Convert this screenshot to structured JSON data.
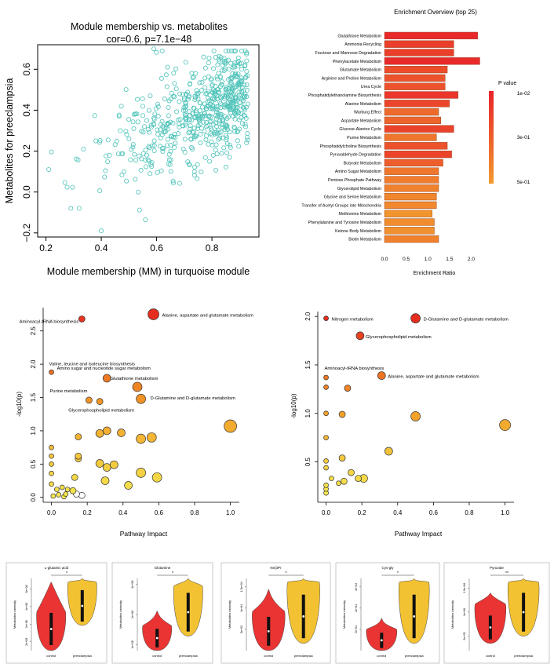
{
  "colors": {
    "scatter_point": "#4fc3b9",
    "bar_high": "#e8232a",
    "bar_low": "#f2992e",
    "bubble_high": "#e52d20",
    "bubble_mid": "#f29a26",
    "bubble_low": "#f4e74f",
    "violin_control": "#e93433",
    "violin_preeclampsia": "#f2c232"
  },
  "chart_data": [
    {
      "type": "scatter",
      "title": "Module membership vs. metabolites",
      "subtitle": "cor=0.6, p=7.1e−48",
      "xlabel": "Module membership (MM) in turquoise module",
      "ylabel": "Metabolites for preeclampsia",
      "xlim": [
        0.17,
        0.97
      ],
      "ylim": [
        -0.22,
        0.72
      ],
      "xticks": [
        "0.2",
        "0.4",
        "0.6",
        "0.8"
      ],
      "xtick_values": [
        0.2,
        0.4,
        0.6,
        0.8
      ],
      "yticks": [
        "−0.2",
        "0.0",
        "0.2",
        "0.4",
        "0.6"
      ],
      "ytick_values": [
        -0.2,
        0.0,
        0.2,
        0.4,
        0.6
      ],
      "point_count": 600,
      "correlation": 0.6,
      "sample_points": [
        {
          "x": 0.21,
          "y": 0.11
        },
        {
          "x": 0.29,
          "y": -0.08
        },
        {
          "x": 0.32,
          "y": -0.08
        },
        {
          "x": 0.4,
          "y": -0.19
        },
        {
          "x": 0.59,
          "y": 0.7
        },
        {
          "x": 0.62,
          "y": 0.69
        },
        {
          "x": 0.77,
          "y": 0.66
        },
        {
          "x": 0.88,
          "y": 0.62
        },
        {
          "x": 0.93,
          "y": 0.43
        },
        {
          "x": 0.38,
          "y": 0.25
        },
        {
          "x": 0.5,
          "y": 0.26
        },
        {
          "x": 0.7,
          "y": 0.45
        }
      ],
      "grid": false
    },
    {
      "type": "bar",
      "title": "Enrichment Overview (top 25)",
      "xlabel": "Enrichment Ratio",
      "xlim": [
        0,
        2.3
      ],
      "xticks": [
        "0.0",
        "0.5",
        "1.0",
        "1.5",
        "2.0"
      ],
      "xtick_values": [
        0,
        0.5,
        1.0,
        1.5,
        2.0
      ],
      "orientation": "horizontal",
      "legend_title": "P value",
      "legend_ticks": [
        "1e-02",
        "3e-01",
        "5e-01"
      ],
      "legend_placement": "right",
      "categories": [
        "Glutathione Metabolism",
        "Ammonia Recycling",
        "Fructose and Mannose Degradation",
        "Phenylacetate Metabolism",
        "Glutamate Metabolism",
        "Arginine and Proline Metabolism",
        "Urea Cycle",
        "Phosphatidylethanolamine Biosynthesis",
        "Alanine Metabolism",
        "Warburg Effect",
        "Aspartate Metabolism",
        "Glucose-Alanine Cycle",
        "Purine Metabolism",
        "Phosphatidylcholine Biosynthesis",
        "Pyruvaldehyde Degradation",
        "Butyrate Metabolism",
        "Amino Sugar Metabolism",
        "Pentose Phosphate Pathway",
        "Glycerolipid Metabolism",
        "Glycine and Serine Metabolism",
        "Transfer of Acetyl Groups into Mitochondria",
        "Methionine Metabolism",
        "Phenylalanine and Tyrosine Metabolism",
        "Ketone Body Metabolism",
        "Biotin Metabolism"
      ],
      "values": [
        2.15,
        1.6,
        1.6,
        2.2,
        1.45,
        1.4,
        1.4,
        1.7,
        1.5,
        1.25,
        1.3,
        1.6,
        1.2,
        1.45,
        1.55,
        1.35,
        1.25,
        1.25,
        1.25,
        1.2,
        1.2,
        1.1,
        1.15,
        1.15,
        1.25
      ],
      "p_values": [
        0.02,
        0.12,
        0.12,
        0.03,
        0.18,
        0.2,
        0.2,
        0.08,
        0.15,
        0.3,
        0.28,
        0.13,
        0.35,
        0.2,
        0.14,
        0.25,
        0.35,
        0.38,
        0.4,
        0.42,
        0.43,
        0.48,
        0.45,
        0.46,
        0.4
      ]
    },
    {
      "type": "scatter",
      "xlabel": "Pathway Impact",
      "ylabel": "-log10(p)",
      "xlim": [
        -0.02,
        1.05
      ],
      "ylim": [
        -0.05,
        2.85
      ],
      "xticks": [
        "0.0",
        "0.2",
        "0.4",
        "0.6",
        "0.8",
        "1.0"
      ],
      "xtick_values": [
        0,
        0.2,
        0.4,
        0.6,
        0.8,
        1.0
      ],
      "yticks": [
        "0.0",
        "0.5",
        "1.0",
        "1.5",
        "2.0",
        "2.5"
      ],
      "ytick_values": [
        0,
        0.5,
        1.0,
        1.5,
        2.0,
        2.5
      ],
      "points": [
        {
          "x": 0.57,
          "y": 2.75,
          "r": 7,
          "label": "Alanine, aspartate and glutamate metabolism"
        },
        {
          "x": 0.17,
          "y": 2.68,
          "r": 4,
          "label": "Aminoacyl-tRNA biosynthesis"
        },
        {
          "x": 0.0,
          "y": 1.88,
          "r": 3,
          "label": "Valine, leucine and isoleucine biosynthesis"
        },
        {
          "x": 0.31,
          "y": 1.79,
          "r": 5,
          "label": "Amino sugar and nucleotide sugar metabolism"
        },
        {
          "x": 0.48,
          "y": 1.66,
          "r": 6,
          "label": "Glutathione metabolism"
        },
        {
          "x": 0.21,
          "y": 1.46,
          "r": 4,
          "label": "Purine metabolism"
        },
        {
          "x": 0.5,
          "y": 1.48,
          "r": 6,
          "label": "D-Glutamine and D-glutamate metabolism"
        },
        {
          "x": 0.27,
          "y": 1.44,
          "r": 4,
          "label": "Glycerophospholipid metabolism"
        },
        {
          "x": 1.0,
          "y": 1.07,
          "r": 8,
          "label": ""
        },
        {
          "x": 0.56,
          "y": 0.9,
          "r": 6,
          "label": ""
        },
        {
          "x": 0.5,
          "y": 0.88,
          "r": 6,
          "label": ""
        },
        {
          "x": 0.39,
          "y": 0.97,
          "r": 5,
          "label": ""
        },
        {
          "x": 0.31,
          "y": 1.0,
          "r": 5,
          "label": ""
        },
        {
          "x": 0.27,
          "y": 0.96,
          "r": 5,
          "label": ""
        },
        {
          "x": 0.15,
          "y": 0.91,
          "r": 4,
          "label": ""
        },
        {
          "x": 0.15,
          "y": 0.62,
          "r": 4,
          "label": ""
        },
        {
          "x": 0.15,
          "y": 0.58,
          "r": 4,
          "label": ""
        },
        {
          "x": 0.0,
          "y": 0.75,
          "r": 3,
          "label": ""
        },
        {
          "x": 0.0,
          "y": 0.62,
          "r": 3,
          "label": ""
        },
        {
          "x": 0.59,
          "y": 0.3,
          "r": 6,
          "label": ""
        },
        {
          "x": 0.5,
          "y": 0.37,
          "r": 6,
          "label": ""
        },
        {
          "x": 0.43,
          "y": 0.18,
          "r": 5,
          "label": ""
        },
        {
          "x": 0.35,
          "y": 0.49,
          "r": 5,
          "label": ""
        },
        {
          "x": 0.31,
          "y": 0.45,
          "r": 5,
          "label": ""
        },
        {
          "x": 0.27,
          "y": 0.51,
          "r": 5,
          "label": ""
        },
        {
          "x": 0.3,
          "y": 0.25,
          "r": 5,
          "label": ""
        },
        {
          "x": 0.13,
          "y": 0.3,
          "r": 4,
          "label": ""
        },
        {
          "x": 0.0,
          "y": 0.5,
          "r": 3,
          "label": ""
        },
        {
          "x": 0.0,
          "y": 0.36,
          "r": 3,
          "label": ""
        },
        {
          "x": 0.0,
          "y": 0.2,
          "r": 3,
          "label": ""
        },
        {
          "x": 0.03,
          "y": 0.12,
          "r": 3,
          "label": ""
        },
        {
          "x": 0.06,
          "y": 0.15,
          "r": 3,
          "label": ""
        },
        {
          "x": 0.09,
          "y": 0.12,
          "r": 3,
          "label": ""
        },
        {
          "x": 0.12,
          "y": 0.1,
          "r": 4,
          "label": ""
        },
        {
          "x": 0.17,
          "y": 0.03,
          "r": 4,
          "label": ""
        },
        {
          "x": 0.14,
          "y": 0.05,
          "r": 4,
          "label": ""
        },
        {
          "x": 0.08,
          "y": 0.05,
          "r": 3,
          "label": ""
        },
        {
          "x": 0.04,
          "y": 0.04,
          "r": 3,
          "label": ""
        },
        {
          "x": 0.01,
          "y": 0.02,
          "r": 3,
          "label": ""
        },
        {
          "x": 0.07,
          "y": 0.01,
          "r": 3,
          "label": ""
        }
      ]
    },
    {
      "type": "scatter",
      "xlabel": "Pathway Impact",
      "ylabel": "-log10(p)",
      "xlim": [
        -0.02,
        1.05
      ],
      "ylim": [
        0.1,
        2.05
      ],
      "xticks": [
        "0.0",
        "0.2",
        "0.4",
        "0.6",
        "0.8",
        "1.0"
      ],
      "xtick_values": [
        0,
        0.2,
        0.4,
        0.6,
        0.8,
        1.0
      ],
      "yticks": [
        "0.5",
        "1.0",
        "1.5",
        "2.0"
      ],
      "ytick_values": [
        0.5,
        1.0,
        1.5,
        2.0
      ],
      "points": [
        {
          "x": 0.0,
          "y": 1.98,
          "r": 3,
          "label": "Nitrogen metabolism"
        },
        {
          "x": 0.5,
          "y": 1.98,
          "r": 6,
          "label": "D-Glutamine and D-glutamate metabolism"
        },
        {
          "x": 0.19,
          "y": 1.8,
          "r": 5,
          "label": "Glycerophospholipid metabolism"
        },
        {
          "x": 0.0,
          "y": 1.37,
          "r": 3,
          "label": "Aminoacyl-tRNA biosynthesis"
        },
        {
          "x": 0.31,
          "y": 1.39,
          "r": 5,
          "label": "Alanine, aspartate and glutamate metabolism"
        },
        {
          "x": 0.0,
          "y": 1.27,
          "r": 3,
          "label": ""
        },
        {
          "x": 0.12,
          "y": 1.26,
          "r": 4,
          "label": ""
        },
        {
          "x": 0.0,
          "y": 1.0,
          "r": 3,
          "label": ""
        },
        {
          "x": 0.09,
          "y": 0.99,
          "r": 4,
          "label": ""
        },
        {
          "x": 0.5,
          "y": 0.97,
          "r": 6,
          "label": ""
        },
        {
          "x": 1.0,
          "y": 0.88,
          "r": 7,
          "label": ""
        },
        {
          "x": 0.0,
          "y": 0.75,
          "r": 3,
          "label": ""
        },
        {
          "x": 0.35,
          "y": 0.61,
          "r": 5,
          "label": ""
        },
        {
          "x": 0.09,
          "y": 0.54,
          "r": 4,
          "label": ""
        },
        {
          "x": 0.0,
          "y": 0.51,
          "r": 3,
          "label": ""
        },
        {
          "x": 0.0,
          "y": 0.44,
          "r": 3,
          "label": ""
        },
        {
          "x": 0.14,
          "y": 0.39,
          "r": 4,
          "label": ""
        },
        {
          "x": 0.21,
          "y": 0.33,
          "r": 5,
          "label": ""
        },
        {
          "x": 0.18,
          "y": 0.33,
          "r": 4,
          "label": ""
        },
        {
          "x": 0.1,
          "y": 0.3,
          "r": 4,
          "label": ""
        },
        {
          "x": 0.07,
          "y": 0.28,
          "r": 3,
          "label": ""
        },
        {
          "x": 0.03,
          "y": 0.33,
          "r": 3,
          "label": ""
        },
        {
          "x": 0.0,
          "y": 0.26,
          "r": 3,
          "label": ""
        },
        {
          "x": 0.0,
          "y": 0.22,
          "r": 3,
          "label": ""
        },
        {
          "x": 0.0,
          "y": 0.18,
          "r": 3,
          "label": ""
        }
      ]
    },
    {
      "type": "violin",
      "title": "L-glutamic acid",
      "categories": [
        "control",
        "preeclampsia"
      ],
      "ylabel": "Metabolites intensity",
      "yticks": [
        "2e+08",
        "3e+08",
        "4e+08",
        "5e+08"
      ],
      "ytick_values": [
        200000000.0,
        300000000.0,
        400000000.0,
        500000000.0
      ],
      "ylim": [
        150000000.0,
        560000000.0
      ],
      "significance": "*",
      "medians": [
        290000000.0,
        350000000.0
      ]
    },
    {
      "type": "violin",
      "title": "Glutamine",
      "categories": [
        "control",
        "preeclampsia"
      ],
      "ylabel": "Metabolites intensity",
      "yticks": [
        "1e+08",
        "2e+08",
        "3e+08"
      ],
      "ytick_values": [
        100000000.0,
        200000000.0,
        300000000.0
      ],
      "ylim": [
        80000000.0,
        320000000.0
      ],
      "significance": "*",
      "medians": [
        100000000.0,
        170000000.0
      ]
    },
    {
      "type": "violin",
      "title": "Nn(3Pr",
      "categories": [
        "control",
        "preeclampsia"
      ],
      "ylabel": "Metabolites intensity",
      "yticks": [
        "5e+03",
        "1e+04",
        "1.5e+04"
      ],
      "ytick_values": [
        5000.0,
        10000.0,
        15000.0
      ],
      "ylim": [
        0,
        17000.0
      ],
      "significance": "*",
      "medians": [
        3500.0,
        6500.0
      ]
    },
    {
      "type": "violin",
      "title": "Cys-gly",
      "categories": [
        "control",
        "preeclampsia"
      ],
      "ylabel": "Metabolites intensity",
      "yticks": [
        "1e+04",
        "2e+04",
        "3e+04"
      ],
      "ytick_values": [
        10000.0,
        20000.0,
        30000.0
      ],
      "ylim": [
        0,
        34000.0
      ],
      "significance": "*",
      "medians": [
        1500.0,
        5000.0
      ]
    },
    {
      "type": "violin",
      "title": "Pyruvate",
      "categories": [
        "control",
        "preeclampsia"
      ],
      "ylabel": "Metabolites intensity",
      "yticks": [
        "5e+05",
        "1e+06",
        "1.5e+06"
      ],
      "ytick_values": [
        500000.0,
        1000000.0,
        1500000.0
      ],
      "ylim": [
        200000.0,
        1700000.0
      ],
      "significance": "**",
      "medians": [
        700000.0,
        1100000.0
      ]
    }
  ]
}
